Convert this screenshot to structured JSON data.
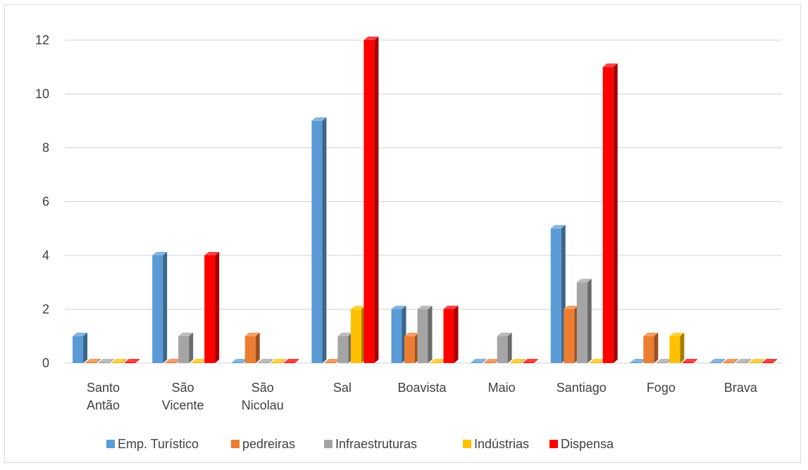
{
  "chart_data": {
    "type": "bar",
    "categories": [
      [
        "Santo",
        "Antão"
      ],
      [
        "São",
        "Vicente"
      ],
      [
        "São",
        "Nicolau"
      ],
      [
        "Sal"
      ],
      [
        "Boavista"
      ],
      [
        "Maio"
      ],
      [
        "Santiago"
      ],
      [
        "Fogo"
      ],
      [
        "Brava"
      ]
    ],
    "series": [
      {
        "name": "Emp. Turístico",
        "color": "#5b9bd5",
        "values": [
          1,
          4,
          0,
          9,
          2,
          0,
          5,
          0,
          0
        ]
      },
      {
        "name": "pedreiras",
        "color": "#ed7d31",
        "values": [
          0,
          0,
          1,
          0,
          1,
          0,
          2,
          1,
          0
        ]
      },
      {
        "name": "Infraestruturas",
        "color": "#a5a5a5",
        "values": [
          0,
          1,
          0,
          1,
          2,
          1,
          3,
          0,
          0
        ]
      },
      {
        "name": "Indústrias",
        "color": "#ffc000",
        "values": [
          0,
          0,
          0,
          2,
          0,
          0,
          0,
          1,
          0
        ]
      },
      {
        "name": "Dispensa",
        "color": "#ff0000",
        "values": [
          0,
          4,
          0,
          12,
          2,
          0,
          11,
          0,
          0
        ]
      }
    ],
    "yticks": [
      "0",
      "2",
      "4",
      "6",
      "8",
      "10",
      "12"
    ],
    "ylim": [
      0,
      12
    ],
    "title": "",
    "xlabel": "",
    "ylabel": "",
    "grid": true,
    "legend_position": "bottom",
    "three_d": true
  }
}
